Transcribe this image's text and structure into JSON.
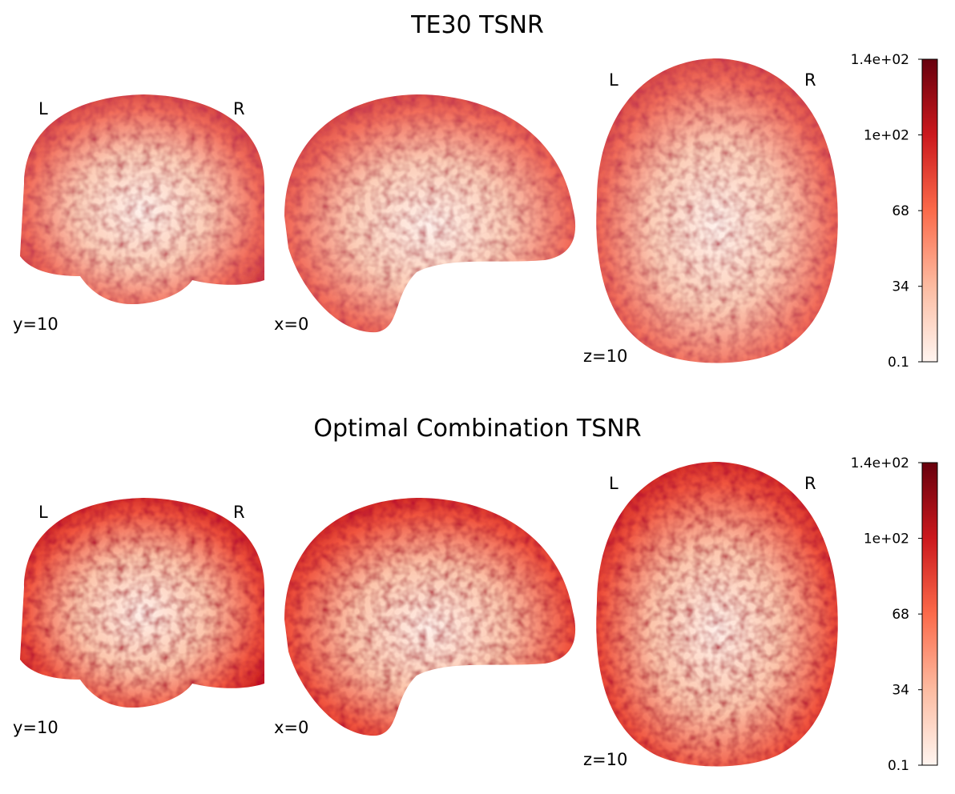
{
  "panels": [
    {
      "title": "TE30 TSNR",
      "views": [
        {
          "coord": "y=10",
          "left": "L",
          "right": "R"
        },
        {
          "coord": "x=0"
        },
        {
          "coord": "z=10",
          "left": "L",
          "right": "R"
        }
      ],
      "colorbar": {
        "clim": [
          0.1,
          136
        ],
        "ticks": [
          0.1,
          34,
          68,
          {
            "value": 102,
            "label": "1e+02"
          },
          {
            "value": 136,
            "label": "1.4e+02"
          }
        ]
      }
    },
    {
      "title": "Optimal Combination TSNR",
      "views": [
        {
          "coord": "y=10",
          "left": "L",
          "right": "R"
        },
        {
          "coord": "x=0"
        },
        {
          "coord": "z=10",
          "left": "L",
          "right": "R"
        }
      ],
      "colorbar": {
        "clim": [
          0.1,
          136
        ],
        "ticks": [
          0.1,
          34,
          68,
          {
            "value": 102,
            "label": "1e+02"
          },
          {
            "value": 136,
            "label": "1.4e+02"
          }
        ]
      }
    }
  ]
}
